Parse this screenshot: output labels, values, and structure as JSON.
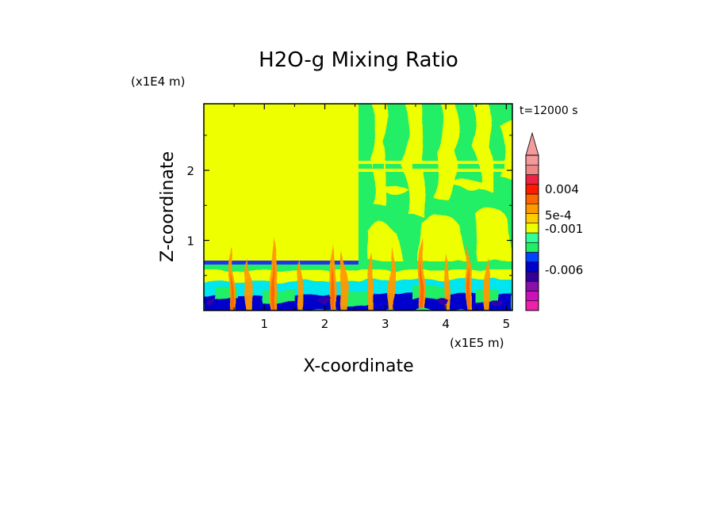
{
  "chart_data": {
    "type": "heatmap",
    "title": "H2O-g Mixing Ratio",
    "xlabel": "X-coordinate",
    "ylabel": "Z-coordinate",
    "x_unit": "(x1E5 m)",
    "y_unit": "(x1E4 m)",
    "time_label": "t=12000 s",
    "xlim": [
      0,
      5.1
    ],
    "ylim": [
      0,
      2.95
    ],
    "x_ticks": [
      1,
      2,
      3,
      4,
      5
    ],
    "x_tick_labels": [
      "1",
      "2",
      "3",
      "4",
      "5"
    ],
    "y_ticks": [
      1,
      2
    ],
    "y_tick_labels": [
      "1",
      "2"
    ],
    "colorbar": {
      "extend": "max",
      "colors_bottom_to_top": [
        "#ee22aa",
        "#cc11bb",
        "#8811aa",
        "#330099",
        "#0000cc",
        "#0044ff",
        "#22ee66",
        "#33ff99",
        "#eeff00",
        "#ffcc00",
        "#ff9900",
        "#ff6600",
        "#ff1a00",
        "#ee2244",
        "#ee8888",
        "#f39a9a"
      ],
      "labels": [
        "-0.006",
        "-0.001",
        "5e-4",
        "0.004"
      ]
    }
  }
}
